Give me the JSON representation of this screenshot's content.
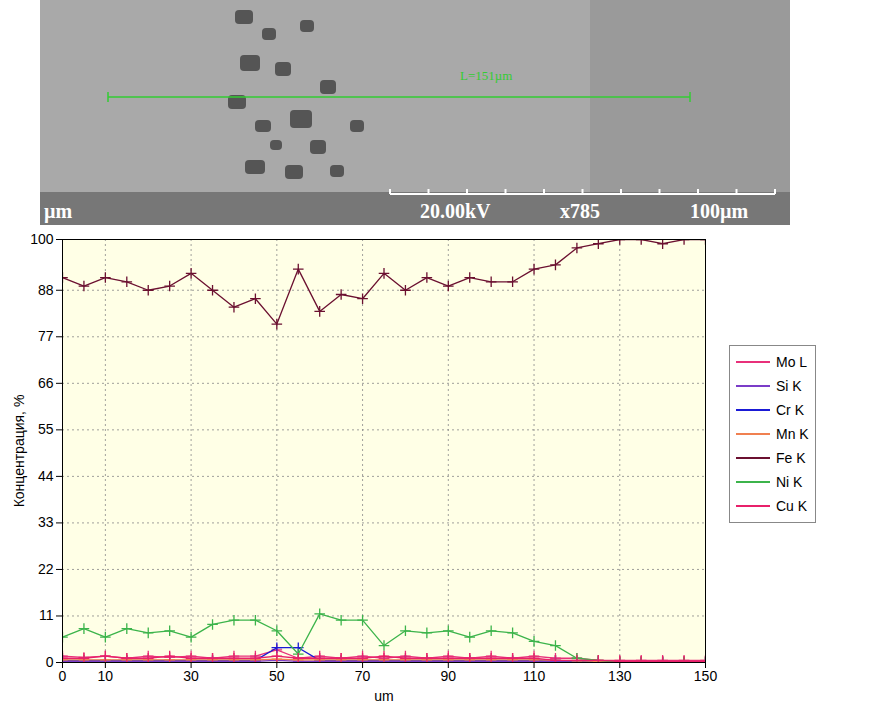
{
  "chart_data": {
    "type": "line",
    "ylabel": "Концентрация, %",
    "xlabel": "um",
    "x": [
      0,
      5,
      10,
      15,
      20,
      25,
      30,
      35,
      40,
      45,
      50,
      55,
      60,
      65,
      70,
      75,
      80,
      85,
      90,
      95,
      100,
      105,
      110,
      115,
      120,
      125,
      130,
      135,
      140,
      145,
      150
    ],
    "series": [
      {
        "name": "Mo L",
        "color": "#e8307a",
        "values": [
          1.5,
          1.2,
          1.5,
          1,
          1.5,
          1.2,
          1.5,
          1,
          1.5,
          1.5,
          3,
          1,
          1.5,
          1,
          1.5,
          1,
          1.5,
          1,
          1.5,
          1,
          1.5,
          1,
          1.5,
          1,
          1,
          0.5,
          0.5,
          0.5,
          0.5,
          0.5,
          0.5
        ]
      },
      {
        "name": "Si K",
        "color": "#7b3cc8",
        "values": [
          0.3,
          0.3,
          0.3,
          0.3,
          0.3,
          0.3,
          0.3,
          0.3,
          0.3,
          0.3,
          0.5,
          0.3,
          0.3,
          0.3,
          0.3,
          0.3,
          0.3,
          0.3,
          0.3,
          0.3,
          0.3,
          0.3,
          0.3,
          0.3,
          0.3,
          0.2,
          0.2,
          0.2,
          0.2,
          0.2,
          0.2
        ]
      },
      {
        "name": "Cr K",
        "color": "#1a1ad6",
        "values": [
          0.5,
          0.5,
          0.5,
          0.5,
          0.5,
          0.5,
          0.5,
          0.5,
          0.5,
          0.5,
          3.5,
          3.5,
          0.5,
          0.5,
          0.5,
          0.5,
          0.5,
          0.5,
          0.5,
          0.5,
          0.5,
          0.5,
          0.5,
          0.5,
          0.3,
          0.2,
          0,
          0,
          0,
          0,
          0
        ]
      },
      {
        "name": "Mn K",
        "color": "#f08050",
        "values": [
          0.6,
          0.6,
          0.6,
          0.6,
          0.6,
          0.6,
          0.6,
          0.6,
          0.6,
          0.6,
          0.8,
          0.6,
          0.6,
          0.6,
          0.6,
          0.6,
          0.6,
          0.6,
          0.6,
          0.6,
          0.6,
          0.6,
          0.6,
          0.5,
          0.4,
          0.3,
          0.2,
          0.2,
          0.2,
          0.2,
          0.2
        ]
      },
      {
        "name": "Fe K",
        "color": "#6b1030",
        "values": [
          91,
          89,
          91,
          90,
          88,
          89,
          92,
          88,
          84,
          86,
          80,
          93,
          83,
          87,
          86,
          92,
          88,
          91,
          89,
          91,
          90,
          90,
          93,
          94,
          98,
          99,
          100,
          100,
          99,
          100,
          100
        ]
      },
      {
        "name": "Ni K",
        "color": "#3cb44b",
        "values": [
          6,
          8,
          6,
          8,
          7,
          7.5,
          6,
          9,
          10,
          10,
          7.5,
          2,
          11.5,
          10,
          10,
          4,
          7.5,
          7,
          7.5,
          6,
          7.5,
          7,
          5,
          4,
          1,
          0.5,
          0,
          0,
          0,
          0,
          0
        ]
      },
      {
        "name": "Cu K",
        "color": "#e8206a",
        "values": [
          1,
          1,
          1.5,
          1,
          1,
          1.5,
          1,
          1,
          1,
          1,
          1.5,
          1,
          1,
          1,
          1,
          1.5,
          1,
          1,
          1,
          1,
          1,
          1,
          1,
          0.5,
          0.5,
          0.5,
          0.3,
          0.3,
          0.3,
          0.3,
          0.3
        ]
      }
    ],
    "xlim": [
      0,
      150
    ],
    "xticks": [
      0,
      10,
      30,
      50,
      70,
      90,
      110,
      130,
      150
    ],
    "ylim": [
      0,
      100
    ],
    "yticks": [
      0,
      11,
      22,
      33,
      44,
      55,
      66,
      77,
      88,
      100
    ],
    "grid": true,
    "legend": "right",
    "marker": "plus"
  },
  "micrograph": {
    "measure_label": "L=151µm",
    "info_bar": [
      "µm",
      "20.00kV",
      "x785",
      "100µm"
    ]
  }
}
